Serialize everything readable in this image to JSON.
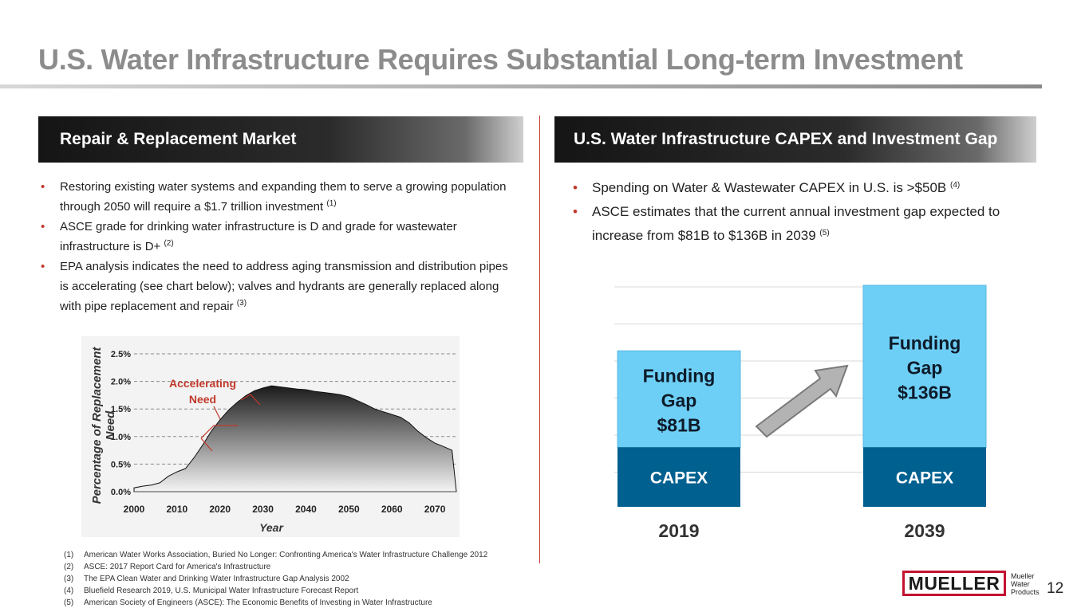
{
  "title": "U.S. Water Infrastructure Requires Substantial Long-term Investment",
  "left_panel": {
    "header": "Repair & Replacement Market",
    "bullets": [
      {
        "text": "Restoring existing water systems and expanding them to serve a growing population through 2050 will require a $1.7 trillion investment",
        "ref": "(1)"
      },
      {
        "text": "ASCE grade for drinking water infrastructure is D and grade for wastewater infrastructure is D+",
        "ref": "(2)"
      },
      {
        "text": "EPA analysis indicates the need to address aging transmission and distribution pipes is accelerating (see chart below); valves and hydrants are generally replaced along with pipe replacement and repair",
        "ref": "(3)"
      }
    ]
  },
  "right_panel": {
    "header": "U.S. Water Infrastructure CAPEX and Investment Gap",
    "bullets": [
      {
        "text": "Spending on Water & Wastewater CAPEX in U.S. is >$50B",
        "ref": "(4)"
      },
      {
        "text": "ASCE estimates that the current annual investment gap expected to increase from $81B to $136B in 2039",
        "ref": "(5)"
      }
    ]
  },
  "chart_data": [
    {
      "type": "area",
      "title": "",
      "xlabel": "Year",
      "ylabel": "Percentage of Replacement Need",
      "x_ticks": [
        "2000",
        "2010",
        "2020",
        "2030",
        "2040",
        "2050",
        "2060",
        "2070"
      ],
      "y_ticks": [
        "0.0%",
        "0.5%",
        "1.0%",
        "1.5%",
        "2.0%",
        "2.5%"
      ],
      "xlim": [
        2000,
        2075
      ],
      "ylim": [
        0,
        2.5
      ],
      "annotation": [
        "Accelerating",
        "Need"
      ],
      "grid": "horizontal-dashed",
      "x": [
        2000,
        2002,
        2004,
        2006,
        2008,
        2010,
        2012,
        2014,
        2016,
        2018,
        2020,
        2022,
        2024,
        2026,
        2028,
        2030,
        2032,
        2034,
        2036,
        2038,
        2040,
        2042,
        2044,
        2046,
        2048,
        2050,
        2052,
        2054,
        2056,
        2058,
        2060,
        2062,
        2064,
        2066,
        2068,
        2070,
        2072,
        2074,
        2075
      ],
      "y": [
        0.07,
        0.1,
        0.12,
        0.16,
        0.28,
        0.36,
        0.42,
        0.62,
        0.85,
        1.1,
        1.3,
        1.48,
        1.62,
        1.74,
        1.83,
        1.88,
        1.92,
        1.9,
        1.88,
        1.86,
        1.85,
        1.82,
        1.8,
        1.78,
        1.76,
        1.72,
        1.65,
        1.58,
        1.5,
        1.45,
        1.4,
        1.35,
        1.25,
        1.1,
        0.98,
        0.88,
        0.82,
        0.75,
        0.0
      ]
    },
    {
      "type": "bar",
      "stacked": true,
      "categories": [
        "2019",
        "2039"
      ],
      "series": [
        {
          "name": "CAPEX",
          "values": [
            50,
            50
          ],
          "labels": [
            "CAPEX",
            "CAPEX"
          ],
          "color": "#00608f"
        },
        {
          "name": "Funding Gap",
          "values": [
            81,
            136
          ],
          "labels": [
            [
              "Funding",
              "Gap",
              "$81B"
            ],
            [
              "Funding",
              "Gap",
              "$136B"
            ]
          ],
          "color": "#6ecff6"
        }
      ],
      "ylim": [
        0,
        186
      ],
      "grid": "horizontal",
      "arrow": "up-right"
    }
  ],
  "footnotes": [
    {
      "num": "(1)",
      "text": "American Water Works Association, Buried No Longer: Confronting America's Water Infrastructure Challenge 2012"
    },
    {
      "num": "(2)",
      "text": "ASCE: 2017 Report Card for America's Infrastructure"
    },
    {
      "num": "(3)",
      "text": "The EPA Clean Water and Drinking Water Infrastructure Gap Analysis 2002"
    },
    {
      "num": "(4)",
      "text": "Bluefield Research 2019, U.S. Municipal Water Infrastructure Forecast Report"
    },
    {
      "num": "(5)",
      "text": "American Society of Engineers (ASCE):  The Economic Benefits of Investing in Water Infrastructure"
    }
  ],
  "logo": {
    "name": "MUELLER",
    "side_lines": [
      "Mueller",
      "Water",
      "Products"
    ],
    "color": "#c41230"
  },
  "page_number": "12"
}
